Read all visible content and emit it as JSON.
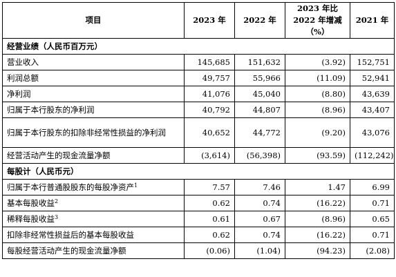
{
  "header": {
    "item": "项目",
    "col_2023": "2023 年",
    "col_2022": "2022 年",
    "col_change": "2023 年比 2022 年增减（%）",
    "col_2021": "2021 年"
  },
  "sections": [
    {
      "title": "经营业绩（人民币百万元）",
      "rows": [
        {
          "label": "营业收入",
          "sup": "",
          "v2023": "145,685",
          "v2022": "151,632",
          "change": "(3.92)",
          "v2021": "152,751"
        },
        {
          "label": "利润总额",
          "sup": "",
          "v2023": "49,757",
          "v2022": "55,966",
          "change": "(11.09)",
          "v2021": "52,941"
        },
        {
          "label": "净利润",
          "sup": "",
          "v2023": "41,076",
          "v2022": "45,040",
          "change": "(8.80)",
          "v2021": "43,639"
        },
        {
          "label": "归属于本行股东的净利润",
          "sup": "",
          "v2023": "40,792",
          "v2022": "44,807",
          "change": "(8.96)",
          "v2021": "43,407"
        },
        {
          "label": "归属于本行股东的扣除非经常性损益的净利润",
          "sup": "",
          "v2023": "40,652",
          "v2022": "44,772",
          "change": "(9.20)",
          "v2021": "43,076",
          "tall": true
        },
        {
          "label": "经营活动产生的现金流量净额",
          "sup": "",
          "v2023": "(3,614)",
          "v2022": "(56,398)",
          "change": "(93.59)",
          "v2021": "(112,242)"
        }
      ]
    },
    {
      "title": "每股计（人民币元）",
      "rows": [
        {
          "label": "归属于本行普通股股东的每股净资产",
          "sup": "1",
          "v2023": "7.57",
          "v2022": "7.46",
          "change": "1.47",
          "v2021": "6.99"
        },
        {
          "label": "基本每股收益",
          "sup": "2",
          "v2023": "0.62",
          "v2022": "0.74",
          "change": "(16.22)",
          "v2021": "0.71"
        },
        {
          "label": "稀释每股收益",
          "sup": "3",
          "v2023": "0.61",
          "v2022": "0.67",
          "change": "(8.96)",
          "v2021": "0.65"
        },
        {
          "label": "扣除非经常性损益后的基本每股收益",
          "sup": "",
          "v2023": "0.62",
          "v2022": "0.74",
          "change": "(16.22)",
          "v2021": "0.71"
        },
        {
          "label": "每股经营活动产生的现金流量净额",
          "sup": "",
          "v2023": "(0.06)",
          "v2022": "(1.04)",
          "change": "(94.23)",
          "v2021": "(2.08)"
        }
      ]
    }
  ]
}
